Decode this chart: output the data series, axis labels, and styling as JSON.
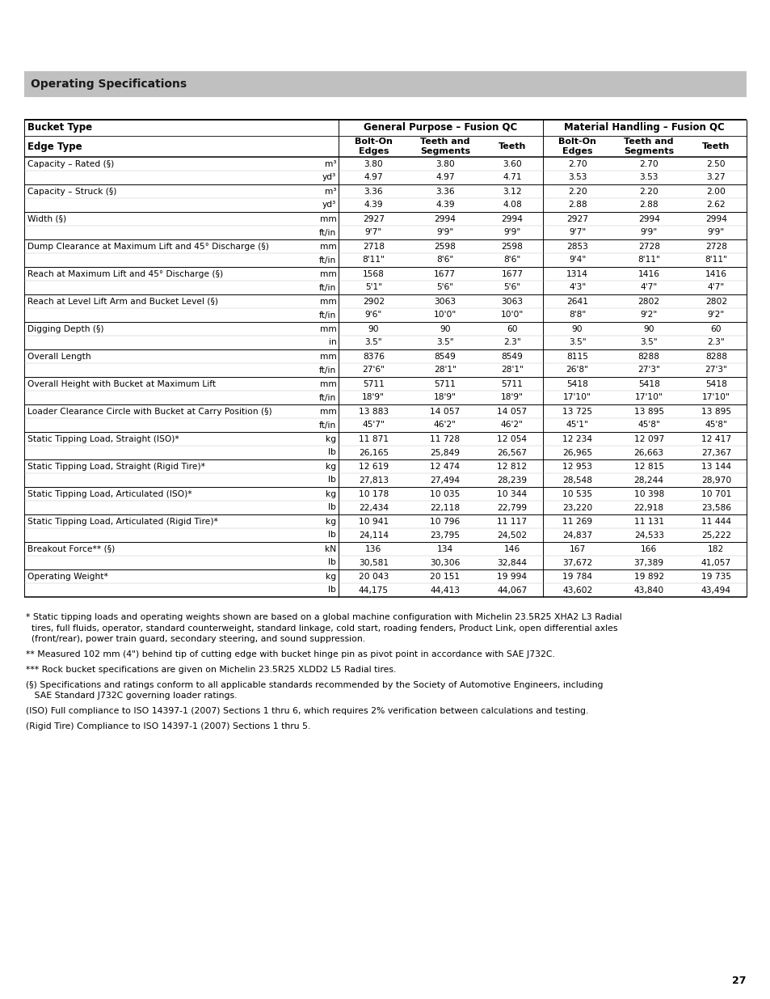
{
  "title": "Operating Specifications",
  "title_bg": "#c0c0c0",
  "page_number": "27",
  "footnotes": [
    {
      "text": "* Static tipping loads and operating weights shown are based on a global machine configuration with Michelin 23.5R25 XHA2 L3 Radial",
      "indent": 0
    },
    {
      "text": "  tires, full fluids, operator, standard counterweight, standard linkage, cold start, roading fenders, Product Link, open differential axles",
      "indent": 0
    },
    {
      "text": "  (front/rear), power train guard, secondary steering, and sound suppression.",
      "indent": 0
    },
    {
      "text": "",
      "indent": 0
    },
    {
      "text": "** Measured 102 mm (4\") behind tip of cutting edge with bucket hinge pin as pivot point in accordance with SAE J732C.",
      "indent": 0
    },
    {
      "text": "",
      "indent": 0
    },
    {
      "text": "*** Rock bucket specifications are given on Michelin 23.5R25 XLDD2 L5 Radial tires.",
      "indent": 0
    },
    {
      "text": "",
      "indent": 0
    },
    {
      "text": "(§) Specifications and ratings conform to all applicable standards recommended by the Society of Automotive Engineers, including",
      "indent": 0
    },
    {
      "text": "   SAE Standard J732C governing loader ratings.",
      "indent": 0
    },
    {
      "text": "",
      "indent": 0
    },
    {
      "text": "(ISO) Full compliance to ISO 14397-1 (2007) Sections 1 thru 6, which requires 2% verification between calculations and testing.",
      "indent": 0
    },
    {
      "text": "",
      "indent": 0
    },
    {
      "text": "(Rigid Tire) Compliance to ISO 14397-1 (2007) Sections 1 thru 5.",
      "indent": 0
    }
  ],
  "rows": [
    [
      "Capacity – Rated (§)",
      "m³",
      "3.80",
      "3.80",
      "3.60",
      "2.70",
      "2.70",
      "2.50"
    ],
    [
      "",
      "yd³",
      "4.97",
      "4.97",
      "4.71",
      "3.53",
      "3.53",
      "3.27"
    ],
    [
      "Capacity – Struck (§)",
      "m³",
      "3.36",
      "3.36",
      "3.12",
      "2.20",
      "2.20",
      "2.00"
    ],
    [
      "",
      "yd³",
      "4.39",
      "4.39",
      "4.08",
      "2.88",
      "2.88",
      "2.62"
    ],
    [
      "Width (§)",
      "mm",
      "2927",
      "2994",
      "2994",
      "2927",
      "2994",
      "2994"
    ],
    [
      "",
      "ft/in",
      "9'7\"",
      "9'9\"",
      "9'9\"",
      "9'7\"",
      "9'9\"",
      "9'9\""
    ],
    [
      "Dump Clearance at Maximum Lift and 45° Discharge (§)",
      "mm",
      "2718",
      "2598",
      "2598",
      "2853",
      "2728",
      "2728"
    ],
    [
      "",
      "ft/in",
      "8'11\"",
      "8'6\"",
      "8'6\"",
      "9'4\"",
      "8'11\"",
      "8'11\""
    ],
    [
      "Reach at Maximum Lift and 45° Discharge (§)",
      "mm",
      "1568",
      "1677",
      "1677",
      "1314",
      "1416",
      "1416"
    ],
    [
      "",
      "ft/in",
      "5'1\"",
      "5'6\"",
      "5'6\"",
      "4'3\"",
      "4'7\"",
      "4'7\""
    ],
    [
      "Reach at Level Lift Arm and Bucket Level (§)",
      "mm",
      "2902",
      "3063",
      "3063",
      "2641",
      "2802",
      "2802"
    ],
    [
      "",
      "ft/in",
      "9'6\"",
      "10'0\"",
      "10'0\"",
      "8'8\"",
      "9'2\"",
      "9'2\""
    ],
    [
      "Digging Depth (§)",
      "mm",
      "90",
      "90",
      "60",
      "90",
      "90",
      "60"
    ],
    [
      "",
      "in",
      "3.5\"",
      "3.5\"",
      "2.3\"",
      "3.5\"",
      "3.5\"",
      "2.3\""
    ],
    [
      "Overall Length",
      "mm",
      "8376",
      "8549",
      "8549",
      "8115",
      "8288",
      "8288"
    ],
    [
      "",
      "ft/in",
      "27'6\"",
      "28'1\"",
      "28'1\"",
      "26'8\"",
      "27'3\"",
      "27'3\""
    ],
    [
      "Overall Height with Bucket at Maximum Lift",
      "mm",
      "5711",
      "5711",
      "5711",
      "5418",
      "5418",
      "5418"
    ],
    [
      "",
      "ft/in",
      "18'9\"",
      "18'9\"",
      "18'9\"",
      "17'10\"",
      "17'10\"",
      "17'10\""
    ],
    [
      "Loader Clearance Circle with Bucket at Carry Position (§)",
      "mm",
      "13 883",
      "14 057",
      "14 057",
      "13 725",
      "13 895",
      "13 895"
    ],
    [
      "",
      "ft/in",
      "45'7\"",
      "46'2\"",
      "46'2\"",
      "45'1\"",
      "45'8\"",
      "45'8\""
    ],
    [
      "Static Tipping Load, Straight (ISO)*",
      "kg",
      "11 871",
      "11 728",
      "12 054",
      "12 234",
      "12 097",
      "12 417"
    ],
    [
      "",
      "lb",
      "26,165",
      "25,849",
      "26,567",
      "26,965",
      "26,663",
      "27,367"
    ],
    [
      "Static Tipping Load, Straight (Rigid Tire)*",
      "kg",
      "12 619",
      "12 474",
      "12 812",
      "12 953",
      "12 815",
      "13 144"
    ],
    [
      "",
      "lb",
      "27,813",
      "27,494",
      "28,239",
      "28,548",
      "28,244",
      "28,970"
    ],
    [
      "Static Tipping Load, Articulated (ISO)*",
      "kg",
      "10 178",
      "10 035",
      "10 344",
      "10 535",
      "10 398",
      "10 701"
    ],
    [
      "",
      "lb",
      "22,434",
      "22,118",
      "22,799",
      "23,220",
      "22,918",
      "23,586"
    ],
    [
      "Static Tipping Load, Articulated (Rigid Tire)*",
      "kg",
      "10 941",
      "10 796",
      "11 117",
      "11 269",
      "11 131",
      "11 444"
    ],
    [
      "",
      "lb",
      "24,114",
      "23,795",
      "24,502",
      "24,837",
      "24,533",
      "25,222"
    ],
    [
      "Breakout Force** (§)",
      "kN",
      "136",
      "134",
      "146",
      "167",
      "166",
      "182"
    ],
    [
      "",
      "lb",
      "30,581",
      "30,306",
      "32,844",
      "37,672",
      "37,389",
      "41,057"
    ],
    [
      "Operating Weight*",
      "kg",
      "20 043",
      "20 151",
      "19 994",
      "19 784",
      "19 892",
      "19 735"
    ],
    [
      "",
      "lb",
      "44,175",
      "44,413",
      "44,067",
      "43,602",
      "43,840",
      "43,494"
    ]
  ]
}
